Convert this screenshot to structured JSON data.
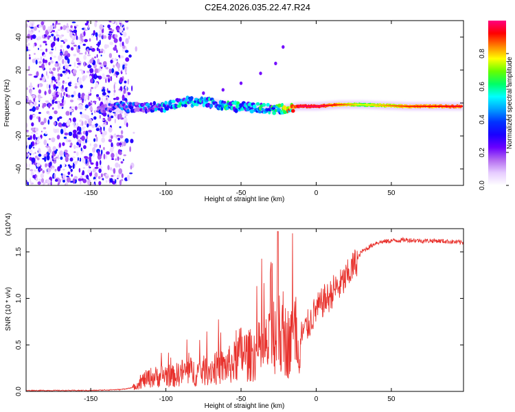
{
  "figure_title": "C2E4.2026.035.22.47.R24",
  "chart_data": [
    {
      "type": "heatmap",
      "title": "C2E4.2026.035.22.47.R24",
      "xlabel": "Height of straight line (km)",
      "ylabel": "Frequency (Hz)",
      "xlim": [
        -193,
        98
      ],
      "ylim": [
        -50,
        50
      ],
      "xticks": [
        -150,
        -100,
        -50,
        0,
        50
      ],
      "yticks": [
        -40,
        -20,
        0,
        20,
        40
      ],
      "colorbar": {
        "label": "Normalized spectral amplitude",
        "range": [
          0,
          1
        ],
        "ticks": [
          "0.0",
          "0.2",
          "0.4",
          "0.6",
          "0.8"
        ],
        "colors": [
          "#ffffff",
          "#e6ccff",
          "#b36bf0",
          "#6a00ff",
          "#1a00ff",
          "#0033ff",
          "#00a0ff",
          "#00ffff",
          "#00ff66",
          "#66ff00",
          "#ffff00",
          "#ff8000",
          "#ff0000",
          "#ff007f"
        ]
      },
      "noise_region": {
        "x_range": [
          -193,
          -125
        ],
        "freq_range": [
          -50,
          50
        ]
      },
      "ridge": [
        {
          "x": -145,
          "freq": -3,
          "amp": 0.25
        },
        {
          "x": -130,
          "freq": -2,
          "amp": 0.3
        },
        {
          "x": -115,
          "freq": -3,
          "amp": 0.35
        },
        {
          "x": -100,
          "freq": -2,
          "amp": 0.4
        },
        {
          "x": -85,
          "freq": 1,
          "amp": 0.45
        },
        {
          "x": -70,
          "freq": 0,
          "amp": 0.45
        },
        {
          "x": -55,
          "freq": -2,
          "amp": 0.45
        },
        {
          "x": -40,
          "freq": -3,
          "amp": 0.45
        },
        {
          "x": -25,
          "freq": -4,
          "amp": 0.5
        },
        {
          "x": -12,
          "freq": -2,
          "amp": 0.9
        },
        {
          "x": 0,
          "freq": -2,
          "amp": 0.9
        },
        {
          "x": 15,
          "freq": -1,
          "amp": 0.8
        },
        {
          "x": 30,
          "freq": -1,
          "amp": 0.65
        },
        {
          "x": 60,
          "freq": -2,
          "amp": 0.8
        },
        {
          "x": 97,
          "freq": -2,
          "amp": 0.85
        }
      ],
      "harmonic_dots": [
        {
          "x": -75,
          "freq": 6
        },
        {
          "x": -62,
          "freq": 8
        },
        {
          "x": -50,
          "freq": 12
        },
        {
          "x": -37,
          "freq": 18
        },
        {
          "x": -27,
          "freq": 24
        },
        {
          "x": -22,
          "freq": 34
        }
      ]
    },
    {
      "type": "line",
      "xlabel": "Height of straight line (km)",
      "ylabel": "SNR (10 * v/v)",
      "ylabel_multiplier": "(x10^4)",
      "xlim": [
        -193,
        98
      ],
      "ylim": [
        0,
        1.75
      ],
      "xticks": [
        -150,
        -100,
        -50,
        0,
        50
      ],
      "yticks": [
        0.0,
        0.5,
        1.0,
        1.5
      ],
      "ytick_labels": [
        "0.0",
        "0.5",
        "1.0",
        "1.5"
      ],
      "line_color": "#e8312c",
      "series": [
        {
          "name": "SNR",
          "x": [
            -193,
            -170,
            -150,
            -130,
            -122,
            -115,
            -110,
            -105,
            -100,
            -95,
            -90,
            -85,
            -80,
            -75,
            -70,
            -65,
            -60,
            -55,
            -50,
            -45,
            -40,
            -35,
            -30,
            -27,
            -25,
            -23,
            -20,
            -17,
            -15,
            -12,
            -10,
            -8,
            -5,
            -2,
            0,
            3,
            5,
            8,
            10,
            12,
            15,
            18,
            20,
            25,
            30,
            40,
            50,
            60,
            70,
            80,
            90,
            98
          ],
          "y": [
            0.01,
            0.01,
            0.01,
            0.02,
            0.04,
            0.12,
            0.15,
            0.16,
            0.18,
            0.16,
            0.2,
            0.22,
            0.2,
            0.22,
            0.24,
            0.25,
            0.27,
            0.3,
            0.42,
            0.38,
            0.42,
            0.45,
            0.5,
            0.72,
            0.65,
            0.55,
            0.55,
            0.5,
            0.6,
            0.55,
            0.6,
            0.65,
            0.72,
            0.82,
            0.88,
            0.92,
            0.98,
            1.0,
            1.05,
            1.1,
            1.12,
            1.18,
            1.22,
            1.35,
            1.5,
            1.6,
            1.62,
            1.63,
            1.62,
            1.62,
            1.61,
            1.6
          ]
        }
      ]
    }
  ]
}
